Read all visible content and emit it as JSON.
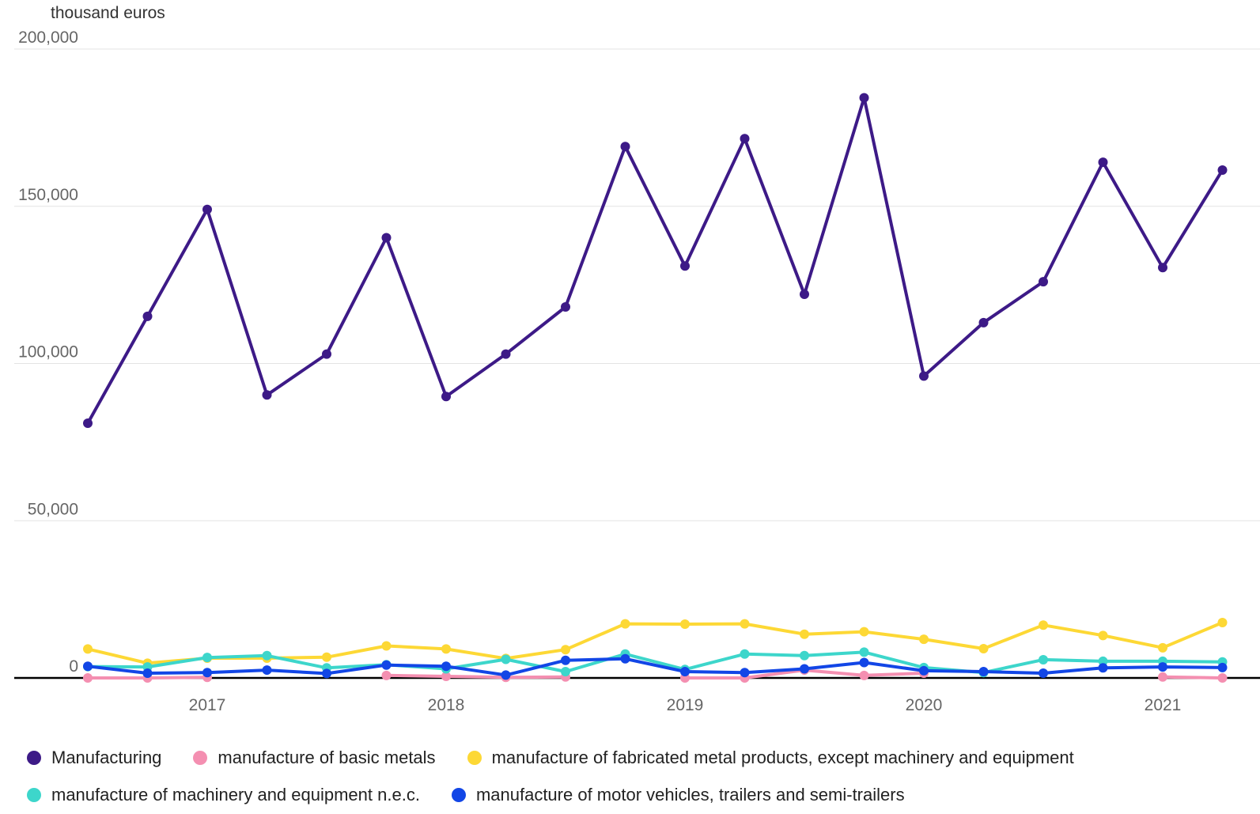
{
  "chart_data": {
    "type": "line",
    "unit_label": "thousand euros",
    "x": [
      "2016-Q3",
      "2016-Q4",
      "2017-Q1",
      "2017-Q2",
      "2017-Q3",
      "2017-Q4",
      "2018-Q1",
      "2018-Q2",
      "2018-Q3",
      "2018-Q4",
      "2019-Q1",
      "2019-Q2",
      "2019-Q3",
      "2019-Q4",
      "2020-Q1",
      "2020-Q2",
      "2020-Q3",
      "2020-Q4",
      "2021-Q1",
      "2021-Q2"
    ],
    "x_tick_labels": [
      "2017",
      "2018",
      "2019",
      "2020",
      "2021"
    ],
    "y_ticks": [
      0,
      50000,
      100000,
      150000,
      200000
    ],
    "y_tick_labels": [
      "0",
      "50,000",
      "100,000",
      "150,000",
      "200,000"
    ],
    "ylim": [
      0,
      200000
    ],
    "grid": true,
    "legend_position": "bottom",
    "series": [
      {
        "name": "Manufacturing",
        "color": "#3d1a87",
        "values": [
          81000,
          115000,
          149000,
          90000,
          103000,
          140000,
          89500,
          103000,
          118000,
          169000,
          131000,
          171500,
          122000,
          184500,
          96000,
          113000,
          126000,
          164000,
          130500,
          161500
        ]
      },
      {
        "name": "manufacture of basic metals",
        "color": "#f48fb1",
        "values": [
          0,
          0,
          200,
          null,
          null,
          800,
          500,
          200,
          300,
          null,
          0,
          0,
          2500,
          800,
          1500,
          null,
          null,
          null,
          300,
          0
        ]
      },
      {
        "name": "manufacture of fabricated metal products, except machinery and equipment",
        "color": "#fdd835",
        "values": [
          9200,
          4700,
          6300,
          6300,
          6600,
          10200,
          9200,
          6200,
          9000,
          17200,
          17100,
          17200,
          13900,
          14700,
          12300,
          9300,
          16800,
          13500,
          9600,
          17600
        ]
      },
      {
        "name": "manufacture of machinery and equipment n.e.c.",
        "color": "#3dd6cb",
        "values": [
          3600,
          3500,
          6500,
          7100,
          3200,
          4200,
          2900,
          5900,
          2000,
          7600,
          2700,
          7600,
          7100,
          8200,
          3300,
          1700,
          5800,
          5300,
          5300,
          5100
        ]
      },
      {
        "name": "manufacture of motor vehicles, trailers and semi-trailers",
        "color": "#1246e6",
        "values": [
          3700,
          1500,
          1700,
          2500,
          1400,
          4100,
          3700,
          900,
          5600,
          6100,
          2000,
          1700,
          2900,
          4900,
          2300,
          2000,
          1500,
          3200,
          3500,
          3300
        ]
      }
    ]
  }
}
